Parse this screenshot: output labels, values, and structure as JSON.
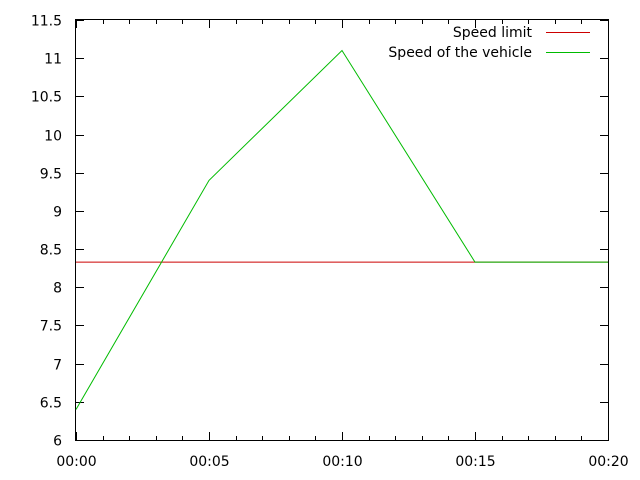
{
  "chart_data": {
    "type": "line",
    "title": "",
    "xlabel": "",
    "ylabel": "",
    "x_tick_labels": [
      "00:00",
      "00:05",
      "00:10",
      "00:15",
      "00:20"
    ],
    "y_ticks": [
      "6",
      "6.5",
      "7",
      "7.5",
      "8",
      "8.5",
      "9",
      "9.5",
      "10",
      "10.5",
      "11",
      "11.5"
    ],
    "xlim": [
      "00:00",
      "00:20"
    ],
    "ylim": [
      6,
      11.5
    ],
    "grid": false,
    "legend_position": "top-right",
    "series": [
      {
        "name": "Speed limit",
        "color": "#cc0000",
        "x": [
          "00:00",
          "00:20"
        ],
        "y": [
          8.33,
          8.33
        ]
      },
      {
        "name": "Speed of the vehicle",
        "color": "#00bb00",
        "x": [
          "00:00",
          "00:05",
          "00:10",
          "00:15",
          "00:20"
        ],
        "y": [
          6.4,
          9.4,
          11.1,
          8.33,
          8.33
        ]
      }
    ]
  }
}
